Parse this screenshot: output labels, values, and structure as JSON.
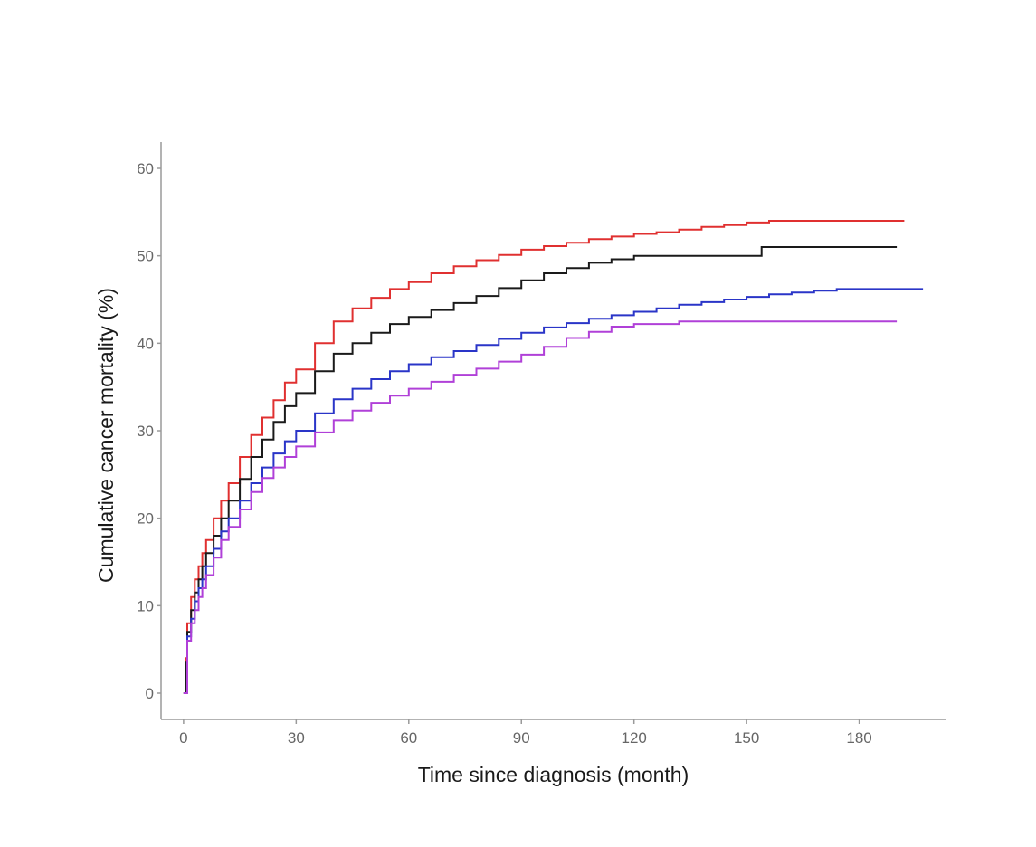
{
  "chart_data": {
    "type": "line",
    "step": true,
    "xlabel": "Time since diagnosis (month)",
    "ylabel": "Cumulative cancer mortality (%)",
    "xlim": [
      -6,
      203
    ],
    "ylim": [
      -3,
      63
    ],
    "xticks": [
      0,
      30,
      60,
      90,
      120,
      150,
      180
    ],
    "yticks": [
      0,
      10,
      20,
      30,
      40,
      50,
      60
    ],
    "grid": false,
    "legend": "none",
    "series": [
      {
        "color": "#e03030",
        "x": [
          0,
          0.5,
          1,
          2,
          3,
          4,
          5,
          6,
          8,
          10,
          12,
          15,
          18,
          21,
          24,
          27,
          30,
          35,
          40,
          45,
          50,
          55,
          60,
          66,
          72,
          78,
          84,
          90,
          96,
          102,
          108,
          114,
          120,
          126,
          132,
          138,
          144,
          150,
          154,
          156,
          192
        ],
        "values": [
          0,
          4,
          8,
          11,
          13,
          14.5,
          16,
          17.5,
          20,
          22,
          24,
          27,
          29.5,
          31.5,
          33.5,
          35.5,
          37,
          40,
          42.5,
          44,
          45.2,
          46.2,
          47,
          48,
          48.8,
          49.5,
          50.1,
          50.7,
          51.1,
          51.5,
          51.9,
          52.2,
          52.5,
          52.7,
          53,
          53.3,
          53.5,
          53.8,
          53.8,
          54,
          54
        ]
      },
      {
        "color": "#1a1a1a",
        "x": [
          0,
          0.5,
          1,
          2,
          3,
          4,
          5,
          6,
          8,
          10,
          12,
          15,
          18,
          21,
          24,
          27,
          30,
          35,
          40,
          45,
          50,
          55,
          60,
          66,
          72,
          78,
          84,
          90,
          96,
          102,
          108,
          114,
          120,
          126,
          132,
          138,
          144,
          150,
          154,
          190
        ],
        "values": [
          0,
          3.5,
          7,
          9.5,
          11.5,
          13,
          14.5,
          16,
          18,
          20,
          22,
          24.5,
          27,
          29,
          31,
          32.8,
          34.3,
          36.8,
          38.8,
          40,
          41.2,
          42.2,
          43,
          43.8,
          44.6,
          45.4,
          46.3,
          47.2,
          48,
          48.6,
          49.2,
          49.6,
          50,
          50,
          50,
          50,
          50,
          50,
          51,
          51
        ]
      },
      {
        "color": "#2a35c8",
        "x": [
          0,
          1,
          2,
          3,
          4,
          5,
          6,
          8,
          10,
          12,
          15,
          18,
          21,
          24,
          27,
          30,
          35,
          40,
          45,
          50,
          55,
          60,
          66,
          72,
          78,
          84,
          90,
          96,
          102,
          108,
          114,
          120,
          126,
          132,
          138,
          144,
          150,
          156,
          162,
          168,
          174,
          197
        ],
        "values": [
          0,
          6.5,
          8.5,
          10.5,
          12,
          13,
          14.5,
          16.5,
          18.5,
          20,
          22,
          24,
          25.8,
          27.4,
          28.8,
          30,
          32,
          33.6,
          34.8,
          35.9,
          36.8,
          37.6,
          38.4,
          39.1,
          39.8,
          40.5,
          41.2,
          41.8,
          42.3,
          42.8,
          43.2,
          43.6,
          44,
          44.4,
          44.7,
          45,
          45.3,
          45.6,
          45.8,
          46,
          46.2,
          46.2
        ]
      },
      {
        "color": "#b040d8",
        "x": [
          0,
          1,
          2,
          3,
          4,
          5,
          6,
          8,
          10,
          12,
          15,
          18,
          21,
          24,
          27,
          30,
          35,
          40,
          45,
          50,
          55,
          60,
          66,
          72,
          78,
          84,
          90,
          96,
          102,
          108,
          114,
          120,
          126,
          132,
          190
        ],
        "values": [
          0,
          6,
          8,
          9.5,
          11,
          12,
          13.5,
          15.5,
          17.5,
          19,
          21,
          23,
          24.6,
          25.8,
          27,
          28.2,
          29.8,
          31.2,
          32.3,
          33.2,
          34,
          34.8,
          35.6,
          36.4,
          37.1,
          37.9,
          38.7,
          39.6,
          40.6,
          41.3,
          41.9,
          42.2,
          42.2,
          42.5,
          42.5
        ]
      }
    ]
  }
}
